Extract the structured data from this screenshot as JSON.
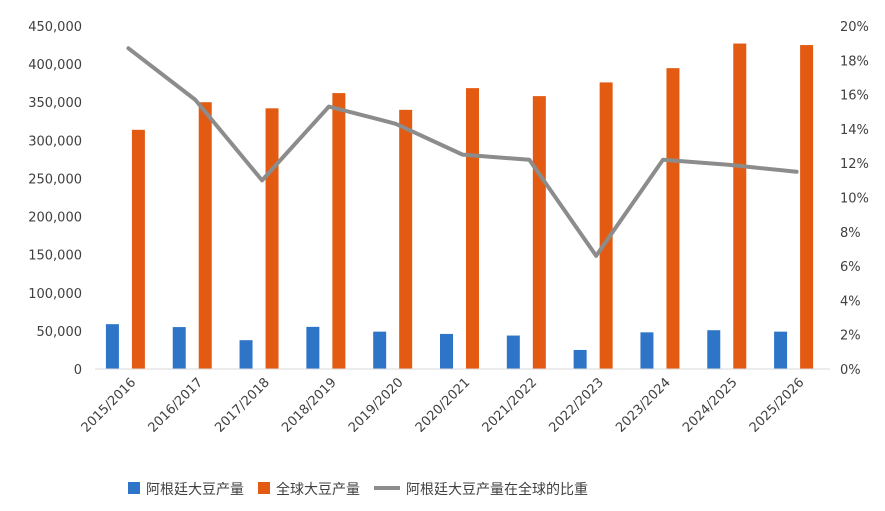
{
  "chart_data": {
    "type": "bar",
    "categories": [
      "2015/2016",
      "2016/2017",
      "2017/2018",
      "2018/2019",
      "2019/2020",
      "2020/2021",
      "2021/2022",
      "2022/2023",
      "2023/2024",
      "2024/2025",
      "2025/2026"
    ],
    "series": [
      {
        "name": "阿根廷大豆产量",
        "type": "bar",
        "axis": "left",
        "color": "#2E75C8",
        "values": [
          58800,
          55000,
          37800,
          55300,
          49000,
          46000,
          43900,
          25000,
          48100,
          50900,
          49000
        ]
      },
      {
        "name": "全球大豆产量",
        "type": "bar",
        "axis": "left",
        "color": "#E35B13",
        "values": [
          313800,
          350000,
          342000,
          362000,
          340000,
          368500,
          358000,
          376000,
          394700,
          427000,
          425000
        ]
      },
      {
        "name": "阿根廷大豆产量在全球的比重",
        "type": "line",
        "axis": "right",
        "color": "#8C8C8C",
        "values": [
          0.187,
          0.157,
          0.11,
          0.153,
          0.143,
          0.125,
          0.122,
          0.066,
          0.122,
          0.119,
          0.115
        ]
      }
    ],
    "yleft": {
      "min": 0,
      "max": 450000,
      "step": 50000,
      "tick_labels": [
        "0",
        "50,000",
        "100,000",
        "150,000",
        "200,000",
        "250,000",
        "300,000",
        "350,000",
        "400,000",
        "450,000"
      ]
    },
    "yright": {
      "min": 0,
      "max": 0.2,
      "step": 0.02,
      "tick_labels": [
        "0%",
        "2%",
        "4%",
        "6%",
        "8%",
        "10%",
        "12%",
        "14%",
        "16%",
        "18%",
        "20%"
      ]
    },
    "legend_position": "bottom",
    "grid": false
  }
}
